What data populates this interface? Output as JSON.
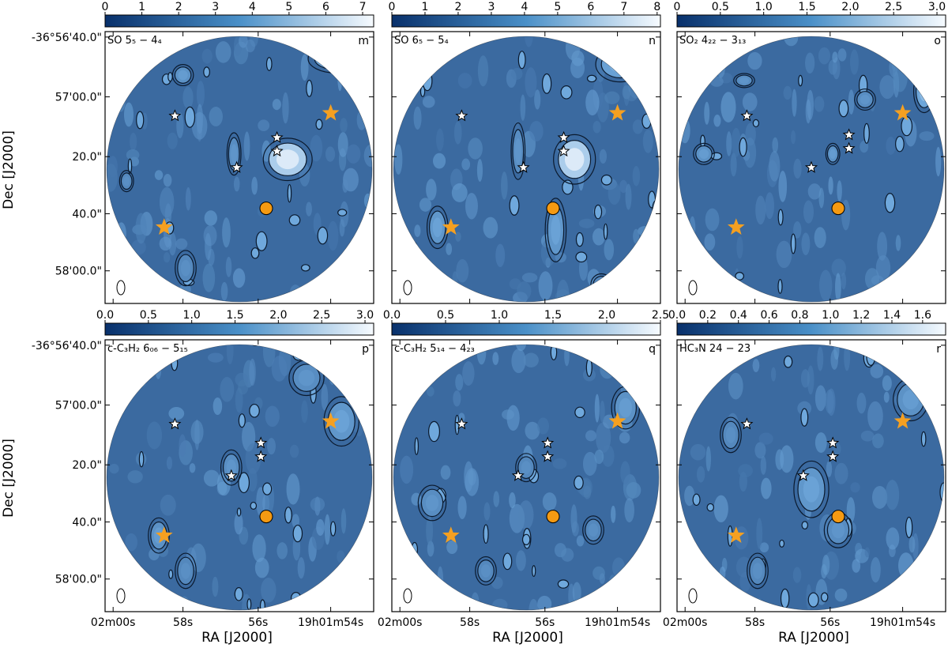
{
  "figure": {
    "xlabel": "RA [J2000]",
    "ylabel": "Dec [J2000]",
    "ra_ticks": [
      "02m00s",
      "58s",
      "56s",
      "19h01m54s"
    ],
    "dec_ticks": [
      "-36°56'40.0\"",
      "57'00.0\"",
      "20.0\"",
      "40.0\"",
      "58'00.0\""
    ],
    "colors": {
      "cmap_low": "#08306b",
      "cmap_mid": "#4a90c8",
      "cmap_high": "#f7fbff",
      "background_emission": "#3b6aa0",
      "star_orange": "#f5a021",
      "circle_orange": "#f59a12",
      "star_white": "#ffffff"
    }
  },
  "chart_data": [
    {
      "type": "heatmap",
      "panel": "m",
      "line": "SO 5₅ − 4₄",
      "colorbar": {
        "min": 0,
        "max": 7.3,
        "ticks": [
          "0",
          "1",
          "2",
          "3",
          "4",
          "5",
          "6",
          "7"
        ]
      },
      "ra_ticks": [
        "02m00s",
        "58s",
        "56s",
        "19h01m54s"
      ],
      "dec_ticks": [
        "-36°56'40.0\"",
        "57'00.0\"",
        "20.0\"",
        "40.0\"",
        "58'00.0\""
      ]
    },
    {
      "type": "heatmap",
      "panel": "n",
      "line": "SO 6₅ − 5₄",
      "colorbar": {
        "min": 0,
        "max": 8.1,
        "ticks": [
          "0",
          "1",
          "2",
          "3",
          "4",
          "5",
          "6",
          "7",
          "8"
        ]
      },
      "ra_ticks": [
        "02m00s",
        "58s",
        "56s",
        "19h01m54s"
      ],
      "dec_ticks": [
        "-36°56'40.0\"",
        "57'00.0\"",
        "20.0\"",
        "40.0\"",
        "58'00.0\""
      ]
    },
    {
      "type": "heatmap",
      "panel": "o",
      "line": "SO₂ 4₂₂ − 3₁₃",
      "colorbar": {
        "min": 0,
        "max": 3.1,
        "ticks": [
          "0",
          "0.5",
          "1.0",
          "1.5",
          "2.0",
          "2.5",
          "3.0"
        ]
      },
      "ra_ticks": [
        "02m00s",
        "58s",
        "56s",
        "19h01m54s"
      ],
      "dec_ticks": [
        "-36°56'40.0\"",
        "57'00.0\"",
        "20.0\"",
        "40.0\"",
        "58'00.0\""
      ]
    },
    {
      "type": "heatmap",
      "panel": "p",
      "line": "c-C₃H₂ 6₀₆ − 5₁₅",
      "colorbar": {
        "min": 0,
        "max": 3.1,
        "ticks": [
          "0.0",
          "0.5",
          "1.0",
          "1.5",
          "2.0",
          "2.5",
          "3.0"
        ]
      },
      "ra_ticks": [
        "02m00s",
        "58s",
        "56s",
        "19h01m54s"
      ],
      "dec_ticks": [
        "-36°56'40.0\"",
        "57'00.0\"",
        "20.0\"",
        "40.0\"",
        "58'00.0\""
      ]
    },
    {
      "type": "heatmap",
      "panel": "q",
      "line": "c-C₃H₂ 5₁₄ − 4₂₃",
      "colorbar": {
        "min": 0,
        "max": 2.5,
        "ticks": [
          "0.0",
          "0.5",
          "1.0",
          "1.5",
          "2.0",
          "2.5"
        ]
      },
      "ra_ticks": [
        "02m00s",
        "58s",
        "56s",
        "19h01m54s"
      ],
      "dec_ticks": [
        "-36°56'40.0\"",
        "57'00.0\"",
        "20.0\"",
        "40.0\"",
        "58'00.0\""
      ]
    },
    {
      "type": "heatmap",
      "panel": "r",
      "line": "HC₃N 24 − 23",
      "colorbar": {
        "min": 0,
        "max": 1.75,
        "ticks": [
          "0.0",
          "0.2",
          "0.4",
          "0.6",
          "0.8",
          "1.0",
          "1.2",
          "1.4",
          "1.6"
        ]
      },
      "ra_ticks": [
        "02m00s",
        "58s",
        "56s",
        "19h01m54s"
      ],
      "dec_ticks": [
        "-36°56'40.0\"",
        "57'00.0\"",
        "20.0\"",
        "40.0\"",
        "58'00.0\""
      ]
    }
  ]
}
